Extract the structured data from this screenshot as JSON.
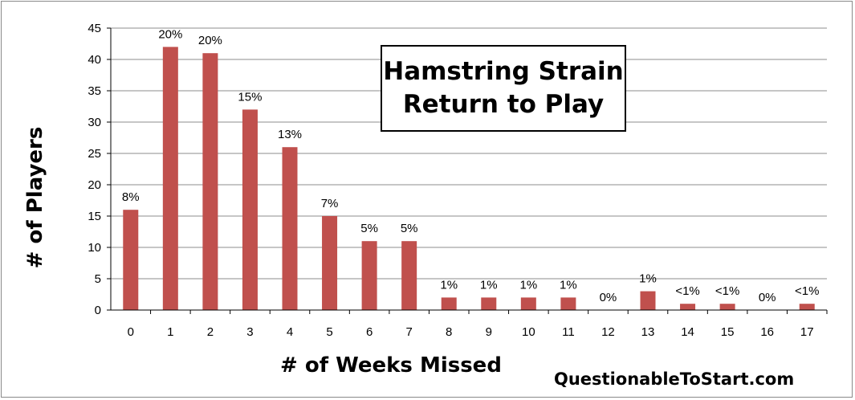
{
  "chart_data": {
    "type": "bar",
    "title": [
      "Hamstring Strain",
      "Return to Play"
    ],
    "xlabel": "# of Weeks Missed",
    "ylabel": "# of Players",
    "categories": [
      "0",
      "1",
      "2",
      "3",
      "4",
      "5",
      "6",
      "7",
      "8",
      "9",
      "10",
      "11",
      "12",
      "13",
      "14",
      "15",
      "16",
      "17"
    ],
    "values": [
      16,
      42,
      41,
      32,
      26,
      15,
      11,
      11,
      2,
      2,
      2,
      2,
      0,
      3,
      1,
      1,
      0,
      1
    ],
    "data_labels": [
      "8%",
      "20%",
      "20%",
      "15%",
      "13%",
      "7%",
      "5%",
      "5%",
      "1%",
      "1%",
      "1%",
      "1%",
      "0%",
      "1%",
      "<1%",
      "<1%",
      "0%",
      "<1%"
    ],
    "ylim": [
      0,
      45
    ],
    "yticks": [
      0,
      5,
      10,
      15,
      20,
      25,
      30,
      35,
      40,
      45
    ],
    "grid": true,
    "bar_color": "#c0504d",
    "source": "QuestionableToStart.com"
  }
}
